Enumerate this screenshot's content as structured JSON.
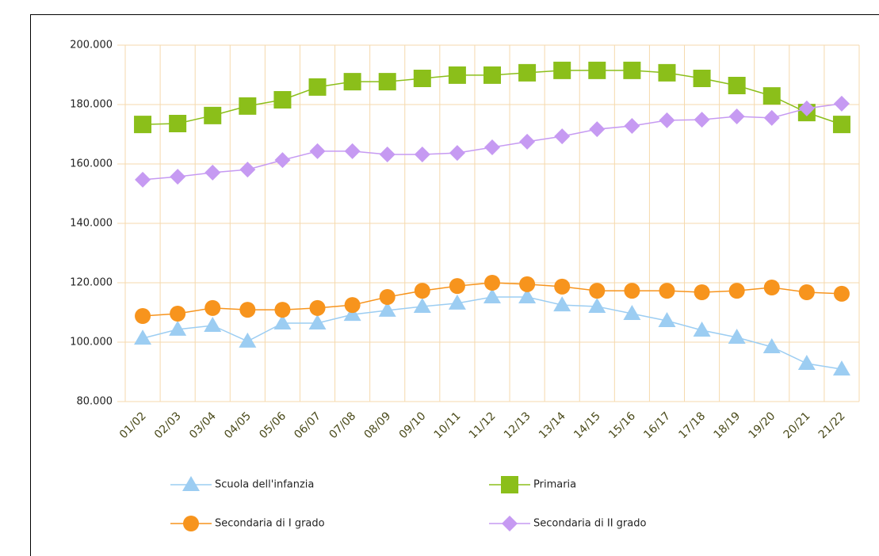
{
  "chart_data": {
    "type": "line",
    "categories": [
      "01/02",
      "02/03",
      "03/04",
      "04/05",
      "05/06",
      "06/07",
      "07/08",
      "08/09",
      "09/10",
      "10/11",
      "11/12",
      "12/13",
      "13/14",
      "14/15",
      "15/16",
      "16/17",
      "17/18",
      "18/19",
      "19/20",
      "20/21",
      "21/22"
    ],
    "ylim": [
      80000,
      200000
    ],
    "yticks": [
      {
        "value": 80000,
        "label": "80.000"
      },
      {
        "value": 100000,
        "label": "100.000"
      },
      {
        "value": 120000,
        "label": "120.000"
      },
      {
        "value": 140000,
        "label": "140.000"
      },
      {
        "value": 160000,
        "label": "160.000"
      },
      {
        "value": 180000,
        "label": "180.000"
      },
      {
        "value": 200000,
        "label": "200.000"
      }
    ],
    "grid": true,
    "legend": "bottom",
    "series": [
      {
        "name": "Scuola dell'infanzia",
        "color": "#9ccdf2",
        "marker": "triangle",
        "values": [
          101300,
          104300,
          105600,
          100300,
          106400,
          106400,
          109300,
          110700,
          112000,
          113100,
          115200,
          115200,
          112500,
          112000,
          109600,
          107200,
          104000,
          101600,
          98400,
          92800,
          90900
        ]
      },
      {
        "name": "Primaria",
        "color": "#8bbf1a",
        "marker": "square",
        "values": [
          173300,
          173600,
          176300,
          179500,
          181600,
          185900,
          187700,
          187700,
          188800,
          189900,
          189900,
          190700,
          191500,
          191500,
          191500,
          190700,
          188800,
          186400,
          182900,
          177300,
          173300
        ]
      },
      {
        "name": "Secondaria di I grado",
        "color": "#f7941d",
        "marker": "circle",
        "values": [
          108800,
          109600,
          111500,
          110900,
          110900,
          111500,
          112500,
          115200,
          117300,
          118900,
          120000,
          119500,
          118700,
          117300,
          117300,
          117300,
          116800,
          117300,
          118400,
          116800,
          116300
        ]
      },
      {
        "name": "Secondaria di II grado",
        "color": "#c69af2",
        "marker": "diamond",
        "values": [
          154700,
          155700,
          157100,
          158100,
          161300,
          164300,
          164300,
          163200,
          163200,
          163700,
          165600,
          167500,
          169300,
          171700,
          172800,
          174700,
          174900,
          176000,
          175500,
          178700,
          180300
        ]
      }
    ]
  }
}
